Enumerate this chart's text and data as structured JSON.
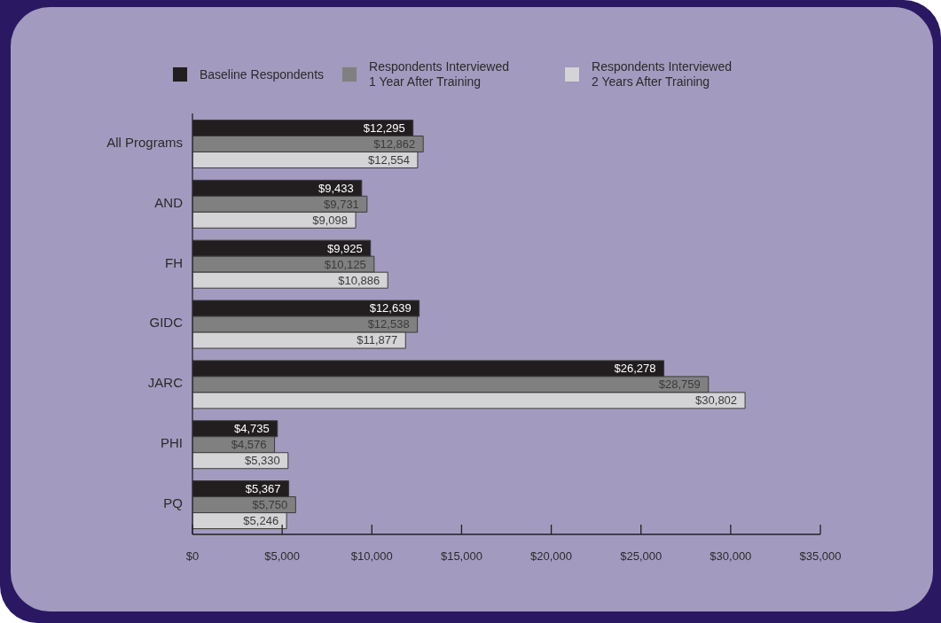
{
  "chart_data": {
    "type": "bar",
    "orientation": "horizontal",
    "categories": [
      "All Programs",
      "AND",
      "FH",
      "GIDC",
      "JARC",
      "PHI",
      "PQ"
    ],
    "series": [
      {
        "name": "Baseline Respondents",
        "color": "#221e1f",
        "values": [
          12295,
          9433,
          9925,
          12639,
          26278,
          4735,
          5367
        ],
        "value_labels": [
          "$12,295",
          "$9,433",
          "$9,925",
          "$12,639",
          "$26,278",
          "$4,735",
          "$5,367"
        ]
      },
      {
        "name": "Respondents Interviewed 1 Year After Training",
        "color": "#808080",
        "values": [
          12862,
          9731,
          10125,
          12538,
          28759,
          4576,
          5750
        ],
        "value_labels": [
          "$12,862",
          "$9,731",
          "$10,125",
          "$12,538",
          "$28,759",
          "$4,576",
          "$5,750"
        ]
      },
      {
        "name": "Respondents Interviewed 2 Years After Training",
        "color": "#d4d4d6",
        "values": [
          12554,
          9098,
          10886,
          11877,
          30802,
          5330,
          5246
        ],
        "value_labels": [
          "$12,554",
          "$9,098",
          "$10,886",
          "$11,877",
          "$30,802",
          "$5,330",
          "$5,246"
        ]
      }
    ],
    "xlim": [
      0,
      35000
    ],
    "xticks": [
      {
        "value": 0,
        "label": "$0"
      },
      {
        "value": 5000,
        "label": "$5,000"
      },
      {
        "value": 10000,
        "label": "$10,000"
      },
      {
        "value": 15000,
        "label": "$15,000"
      },
      {
        "value": 20000,
        "label": "$20,000"
      },
      {
        "value": 25000,
        "label": "$25,000"
      },
      {
        "value": 30000,
        "label": "$30,000"
      },
      {
        "value": 35000,
        "label": "$35,000"
      }
    ],
    "legend": "top"
  }
}
